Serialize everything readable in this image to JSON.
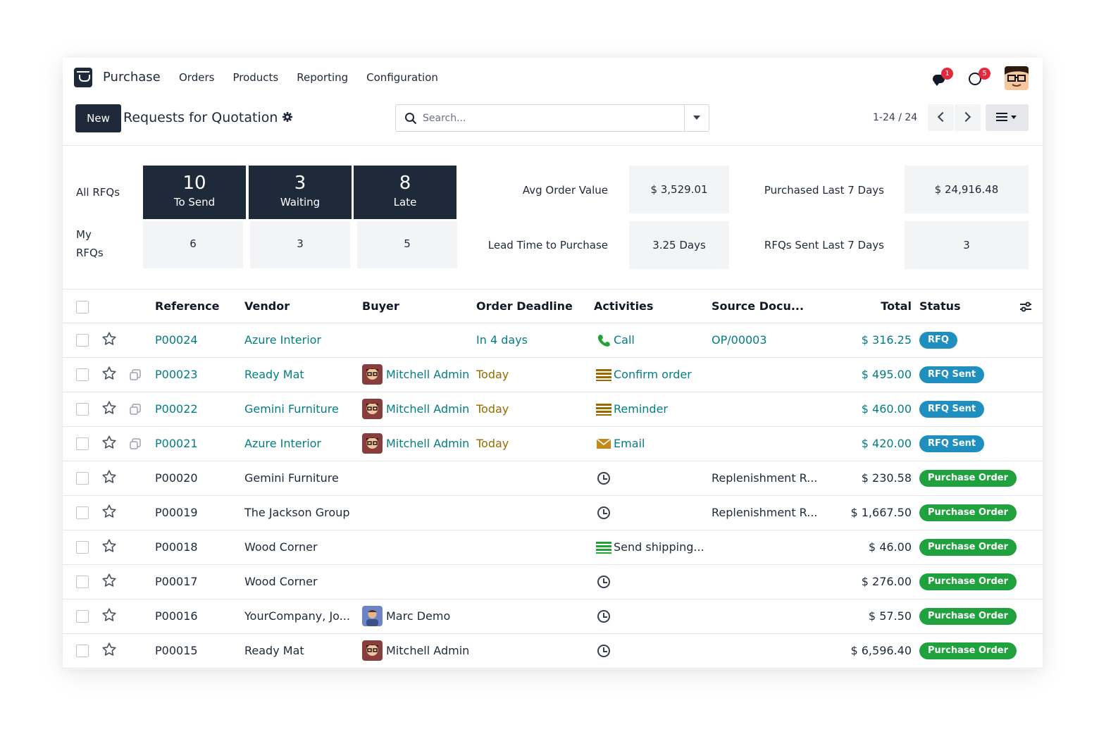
{
  "navbar": {
    "app_name": "Purchase",
    "menu": [
      "Orders",
      "Products",
      "Reporting",
      "Configuration"
    ],
    "chat_badge": "1",
    "activity_badge": "5"
  },
  "control": {
    "new_label": "New",
    "title": "Requests for Quotation",
    "search_placeholder": "Search...",
    "pager": "1-24 / 24"
  },
  "dashboard": {
    "all_rfqs_label": "All RFQs",
    "my_rfqs_label": "My RFQs",
    "all": [
      {
        "value": "10",
        "label": "To Send"
      },
      {
        "value": "3",
        "label": "Waiting"
      },
      {
        "value": "8",
        "label": "Late"
      }
    ],
    "my": [
      "6",
      "3",
      "5"
    ],
    "kpis": [
      {
        "label": "Avg Order Value",
        "value": "$ 3,529.01"
      },
      {
        "label": "Purchased Last 7 Days",
        "value": "$ 24,916.48"
      },
      {
        "label": "Lead Time to Purchase",
        "value": "3.25 Days"
      },
      {
        "label": "RFQs Sent Last 7 Days",
        "value": "3"
      }
    ]
  },
  "table": {
    "headers": {
      "reference": "Reference",
      "vendor": "Vendor",
      "buyer": "Buyer",
      "deadline": "Order Deadline",
      "activities": "Activities",
      "source": "Source Docu...",
      "total": "Total",
      "status": "Status"
    },
    "rows": [
      {
        "ref": "P00024",
        "vendor": "Azure Interior",
        "buyer": "",
        "deadline": "In 4 days",
        "activity": "Call",
        "activity_icon": "phone-icon",
        "source": "OP/00003",
        "total": "$ 316.25",
        "status": "RFQ"
      },
      {
        "ref": "P00023",
        "vendor": "Ready Mat",
        "buyer": "Mitchell Admin",
        "deadline": "Today",
        "activity": "Confirm order",
        "activity_icon": "todo-icon",
        "source": "",
        "total": "$ 495.00",
        "status": "RFQ Sent"
      },
      {
        "ref": "P00022",
        "vendor": "Gemini Furniture",
        "buyer": "Mitchell Admin",
        "deadline": "Today",
        "activity": "Reminder",
        "activity_icon": "todo-icon",
        "source": "",
        "total": "$ 460.00",
        "status": "RFQ Sent"
      },
      {
        "ref": "P00021",
        "vendor": "Azure Interior",
        "buyer": "Mitchell Admin",
        "deadline": "Today",
        "activity": "Email",
        "activity_icon": "envelope-icon",
        "source": "",
        "total": "$ 420.00",
        "status": "RFQ Sent"
      },
      {
        "ref": "P00020",
        "vendor": "Gemini Furniture",
        "buyer": "",
        "deadline": "",
        "activity": "",
        "activity_icon": "clock-icon",
        "source": "Replenishment R...",
        "total": "$ 230.58",
        "status": "Purchase Order"
      },
      {
        "ref": "P00019",
        "vendor": "The Jackson Group",
        "buyer": "",
        "deadline": "",
        "activity": "",
        "activity_icon": "clock-icon",
        "source": "Replenishment R...",
        "total": "$ 1,667.50",
        "status": "Purchase Order"
      },
      {
        "ref": "P00018",
        "vendor": "Wood Corner",
        "buyer": "",
        "deadline": "",
        "activity": "Send shipping...",
        "activity_icon": "todo-icon",
        "source": "",
        "total": "$ 46.00",
        "status": "Purchase Order"
      },
      {
        "ref": "P00017",
        "vendor": "Wood Corner",
        "buyer": "",
        "deadline": "",
        "activity": "",
        "activity_icon": "clock-icon",
        "source": "",
        "total": "$ 276.00",
        "status": "Purchase Order"
      },
      {
        "ref": "P00016",
        "vendor": "YourCompany, Jo...",
        "buyer": "Marc Demo",
        "deadline": "",
        "activity": "",
        "activity_icon": "clock-icon",
        "source": "",
        "total": "$ 57.50",
        "status": "Purchase Order"
      },
      {
        "ref": "P00015",
        "vendor": "Ready Mat",
        "buyer": "Mitchell Admin",
        "deadline": "",
        "activity": "",
        "activity_icon": "clock-icon",
        "source": "",
        "total": "$ 6,596.40",
        "status": "Purchase Order"
      }
    ]
  },
  "colors": {
    "primary_dark": "#1e2a3a",
    "link": "#017e84",
    "warning": "#9a6a00",
    "status_rfq": "#1f8fbf",
    "status_po": "#1fa23e"
  }
}
